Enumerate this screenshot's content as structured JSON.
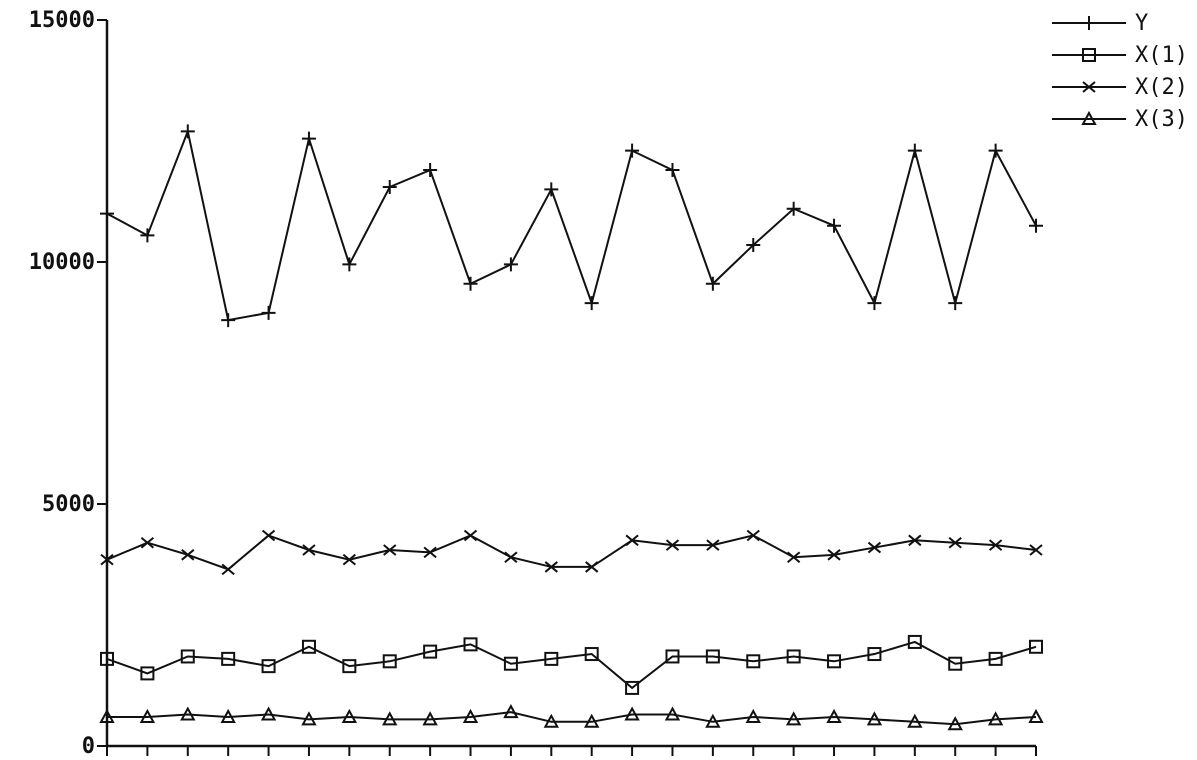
{
  "chart_data": {
    "type": "line",
    "title": "",
    "xlabel": "",
    "ylabel": "",
    "ylim": [
      0,
      15000
    ],
    "yticks": [
      0,
      5000,
      10000,
      15000
    ],
    "ytick_labels": [
      "0",
      "5000",
      "10000",
      "15000"
    ],
    "x": [
      1,
      2,
      3,
      4,
      5,
      6,
      7,
      8,
      9,
      10,
      11,
      12,
      13,
      14,
      15,
      16,
      17,
      18,
      19,
      20,
      21,
      22,
      23,
      24
    ],
    "grid": false,
    "legend_position": "top-right",
    "series": [
      {
        "name": "Y",
        "marker": "plus",
        "values": [
          11000,
          10550,
          12700,
          8800,
          8950,
          12550,
          9950,
          11550,
          11900,
          9550,
          9950,
          11500,
          9150,
          12300,
          11900,
          9550,
          10350,
          11100,
          10750,
          9150,
          12300,
          9150,
          12300,
          10750
        ]
      },
      {
        "name": "X(1)",
        "marker": "square",
        "values": [
          1800,
          1500,
          1850,
          1800,
          1650,
          2050,
          1650,
          1750,
          1950,
          2100,
          1700,
          1800,
          1900,
          1200,
          1850,
          1850,
          1750,
          1850,
          1750,
          1900,
          2150,
          1700,
          1800,
          2050
        ]
      },
      {
        "name": "X(2)",
        "marker": "x",
        "values": [
          3850,
          4200,
          3950,
          3650,
          4350,
          4050,
          3850,
          4050,
          4000,
          4350,
          3900,
          3700,
          3700,
          4250,
          4150,
          4150,
          4350,
          3900,
          3950,
          4100,
          4250,
          4200,
          4150,
          4050
        ]
      },
      {
        "name": "X(3)",
        "marker": "triangle",
        "values": [
          600,
          600,
          650,
          600,
          650,
          550,
          600,
          550,
          550,
          600,
          700,
          500,
          500,
          650,
          650,
          500,
          600,
          550,
          600,
          550,
          500,
          450,
          550,
          600
        ]
      }
    ]
  }
}
